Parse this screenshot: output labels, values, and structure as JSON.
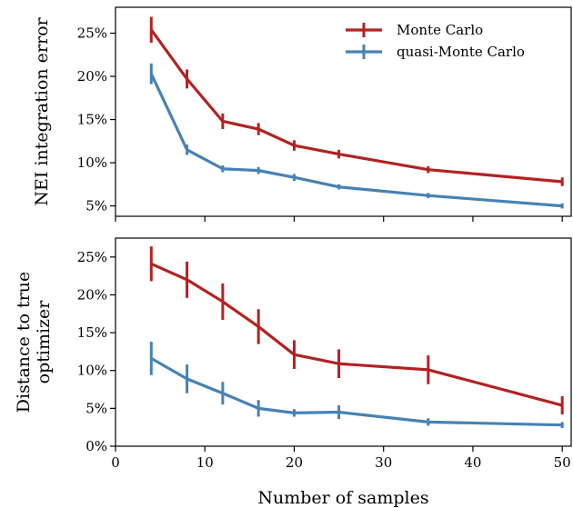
{
  "chart_data": [
    {
      "type": "line",
      "ylabel": "NEI integration error",
      "xlim": [
        0,
        51
      ],
      "ylim": [
        3.8,
        28
      ],
      "yticks": [
        5,
        10,
        15,
        20,
        25
      ],
      "ytick_labels": [
        "5%",
        "10%",
        "15%",
        "20%",
        "25%"
      ],
      "xticks": [
        0,
        10,
        20,
        30,
        40,
        50
      ],
      "show_x_tick_labels": false,
      "grid": false,
      "legend_position": "top-right",
      "x": [
        4,
        8,
        12,
        16,
        20,
        25,
        35,
        50
      ],
      "series": [
        {
          "name": "Monte Carlo",
          "color": "#b22222",
          "values": [
            25.4,
            19.7,
            14.8,
            13.9,
            12.0,
            11.0,
            9.2,
            7.8
          ],
          "errors": [
            1.5,
            1.1,
            0.9,
            0.7,
            0.6,
            0.5,
            0.4,
            0.5
          ]
        },
        {
          "name": "quasi-Monte Carlo",
          "color": "#4682b4",
          "values": [
            20.3,
            11.5,
            9.3,
            9.1,
            8.3,
            7.2,
            6.2,
            5.0
          ],
          "errors": [
            1.2,
            0.6,
            0.4,
            0.4,
            0.4,
            0.3,
            0.3,
            0.3
          ]
        }
      ]
    },
    {
      "type": "line",
      "ylabel": "Distance to true\noptimizer",
      "xlabel": "Number of samples",
      "xlim": [
        0,
        51
      ],
      "ylim": [
        0,
        27.5
      ],
      "yticks": [
        0,
        5,
        10,
        15,
        20,
        25
      ],
      "ytick_labels": [
        "0%",
        "5%",
        "10%",
        "15%",
        "20%",
        "25%"
      ],
      "xticks": [
        0,
        10,
        20,
        30,
        40,
        50
      ],
      "xtick_labels": [
        "0",
        "10",
        "20",
        "30",
        "40",
        "50"
      ],
      "show_x_tick_labels": true,
      "grid": false,
      "x": [
        4,
        8,
        12,
        16,
        20,
        25,
        35,
        50
      ],
      "series": [
        {
          "name": "Monte Carlo",
          "color": "#b22222",
          "values": [
            24.1,
            22.0,
            19.1,
            15.8,
            12.1,
            10.9,
            10.1,
            5.4
          ],
          "errors": [
            2.3,
            2.4,
            2.4,
            2.3,
            1.9,
            1.9,
            1.9,
            1.2
          ]
        },
        {
          "name": "quasi-Monte Carlo",
          "color": "#4682b4",
          "values": [
            11.6,
            8.9,
            7.0,
            5.0,
            4.4,
            4.5,
            3.2,
            2.8
          ],
          "errors": [
            2.2,
            1.9,
            1.5,
            1.1,
            0.5,
            0.9,
            0.5,
            0.4
          ]
        }
      ]
    }
  ]
}
